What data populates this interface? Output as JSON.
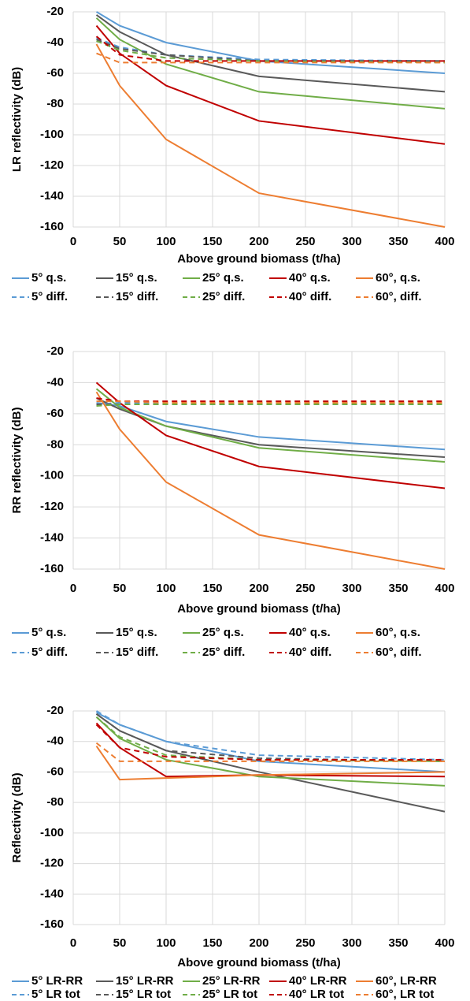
{
  "chart_data": [
    {
      "type": "line",
      "ylabel": "LR reflectivity (dB)",
      "xlabel": "Above ground biomass (t/ha)",
      "x": [
        25,
        50,
        100,
        200,
        400
      ],
      "xlim": [
        0,
        400
      ],
      "xticks": [
        0,
        50,
        100,
        150,
        200,
        250,
        300,
        350,
        400
      ],
      "ylim": [
        -160,
        -20
      ],
      "yticks": [
        -20,
        -40,
        -60,
        -80,
        -100,
        -120,
        -140,
        -160
      ],
      "grid": true,
      "series": [
        {
          "name": "5° q.s.",
          "color": "#5b9bd5",
          "dashed": false,
          "values": [
            -20,
            -29,
            -40,
            -52,
            -60
          ]
        },
        {
          "name": "15° q.s.",
          "color": "#595959",
          "dashed": false,
          "values": [
            -22,
            -33,
            -48,
            -62,
            -72
          ]
        },
        {
          "name": "25° q.s.",
          "color": "#70ad47",
          "dashed": false,
          "values": [
            -24,
            -38,
            -54,
            -72,
            -83
          ]
        },
        {
          "name": "40° q.s.",
          "color": "#c00000",
          "dashed": false,
          "values": [
            -29,
            -47,
            -68,
            -91,
            -106
          ]
        },
        {
          "name": "60°, q.s.",
          "color": "#ed7d31",
          "dashed": false,
          "values": [
            -41,
            -68,
            -103,
            -138,
            -160
          ]
        },
        {
          "name": "5° diff.",
          "color": "#5b9bd5",
          "dashed": true,
          "values": [
            -37,
            -43,
            -48,
            -51,
            -52
          ]
        },
        {
          "name": "15° diff.",
          "color": "#595959",
          "dashed": true,
          "values": [
            -38,
            -44,
            -48,
            -52,
            -52
          ]
        },
        {
          "name": "25° diff.",
          "color": "#70ad47",
          "dashed": true,
          "values": [
            -39,
            -45,
            -50,
            -52,
            -53
          ]
        },
        {
          "name": "40° diff.",
          "color": "#c00000",
          "dashed": true,
          "values": [
            -36,
            -48,
            -52,
            -52,
            -52
          ]
        },
        {
          "name": "60°, diff.",
          "color": "#ed7d31",
          "dashed": true,
          "values": [
            -47,
            -53,
            -53,
            -53,
            -53
          ]
        }
      ]
    },
    {
      "type": "line",
      "ylabel": "RR reflectivity (dB)",
      "xlabel": "Above ground biomass (t/ha)",
      "x": [
        25,
        50,
        100,
        200,
        400
      ],
      "xlim": [
        0,
        400
      ],
      "xticks": [
        0,
        50,
        100,
        150,
        200,
        250,
        300,
        350,
        400
      ],
      "ylim": [
        -160,
        -20
      ],
      "yticks": [
        -20,
        -40,
        -60,
        -80,
        -100,
        -120,
        -140,
        -160
      ],
      "grid": true,
      "series": [
        {
          "name": "5° q.s.",
          "color": "#5b9bd5",
          "dashed": false,
          "values": [
            -53,
            -55,
            -65,
            -75,
            -83
          ]
        },
        {
          "name": "15° q.s.",
          "color": "#595959",
          "dashed": false,
          "values": [
            -50,
            -57,
            -68,
            -80,
            -88
          ]
        },
        {
          "name": "25° q.s.",
          "color": "#70ad47",
          "dashed": false,
          "values": [
            -44,
            -56,
            -68,
            -82,
            -91
          ]
        },
        {
          "name": "40° q.s.",
          "color": "#c00000",
          "dashed": false,
          "values": [
            -40,
            -53,
            -74,
            -94,
            -108
          ]
        },
        {
          "name": "60°, q.s.",
          "color": "#ed7d31",
          "dashed": false,
          "values": [
            -46,
            -70,
            -104,
            -138,
            -160
          ]
        },
        {
          "name": "5° diff.",
          "color": "#5b9bd5",
          "dashed": true,
          "values": [
            -54,
            -53,
            -53,
            -53,
            -53
          ]
        },
        {
          "name": "15° diff.",
          "color": "#595959",
          "dashed": true,
          "values": [
            -54,
            -54,
            -54,
            -54,
            -54
          ]
        },
        {
          "name": "25° diff.",
          "color": "#70ad47",
          "dashed": true,
          "values": [
            -55,
            -54,
            -54,
            -54,
            -54
          ]
        },
        {
          "name": "40° diff.",
          "color": "#c00000",
          "dashed": true,
          "values": [
            -50,
            -52,
            -52,
            -52,
            -52
          ]
        },
        {
          "name": "60°, diff.",
          "color": "#ed7d31",
          "dashed": true,
          "values": [
            -52,
            -52,
            -53,
            -53,
            -53
          ]
        }
      ]
    },
    {
      "type": "line",
      "ylabel": "Reflectivity (dB)",
      "xlabel": "Above ground biomass (t/ha)",
      "x": [
        25,
        50,
        100,
        200,
        400
      ],
      "xlim": [
        0,
        400
      ],
      "xticks": [
        0,
        50,
        100,
        150,
        200,
        250,
        300,
        350,
        400
      ],
      "ylim": [
        -160,
        -20
      ],
      "yticks": [
        -20,
        -40,
        -60,
        -80,
        -100,
        -120,
        -140,
        -160
      ],
      "grid": true,
      "series": [
        {
          "name": "5° LR-RR",
          "color": "#5b9bd5",
          "dashed": false,
          "values": [
            -21,
            -29,
            -40,
            -53,
            -60
          ]
        },
        {
          "name": "15° LR-RR",
          "color": "#595959",
          "dashed": false,
          "values": [
            -22,
            -33,
            -46,
            -60,
            -86
          ]
        },
        {
          "name": "25° LR-RR",
          "color": "#70ad47",
          "dashed": false,
          "values": [
            -24,
            -38,
            -52,
            -63,
            -69
          ]
        },
        {
          "name": "40° LR-RR",
          "color": "#c00000",
          "dashed": false,
          "values": [
            -28,
            -44,
            -63,
            -62,
            -63
          ]
        },
        {
          "name": "60°, LR-RR",
          "color": "#ed7d31",
          "dashed": false,
          "values": [
            -43,
            -65,
            -64,
            -62,
            -60
          ]
        },
        {
          "name": "5° LR tot",
          "color": "#5b9bd5",
          "dashed": true,
          "values": [
            -20,
            -29,
            -40,
            -49,
            -52
          ]
        },
        {
          "name": "15° LR tot",
          "color": "#595959",
          "dashed": true,
          "values": [
            -22,
            -33,
            -46,
            -51,
            -53
          ]
        },
        {
          "name": "25° LR tot",
          "color": "#70ad47",
          "dashed": true,
          "values": [
            -24,
            -37,
            -49,
            -52,
            -53
          ]
        },
        {
          "name": "40° LR tot",
          "color": "#c00000",
          "dashed": true,
          "values": [
            -29,
            -44,
            -50,
            -52,
            -52
          ]
        },
        {
          "name": "60°, LR tot",
          "color": "#ed7d31",
          "dashed": true,
          "values": [
            -41,
            -53,
            -53,
            -53,
            -53
          ]
        }
      ]
    }
  ]
}
